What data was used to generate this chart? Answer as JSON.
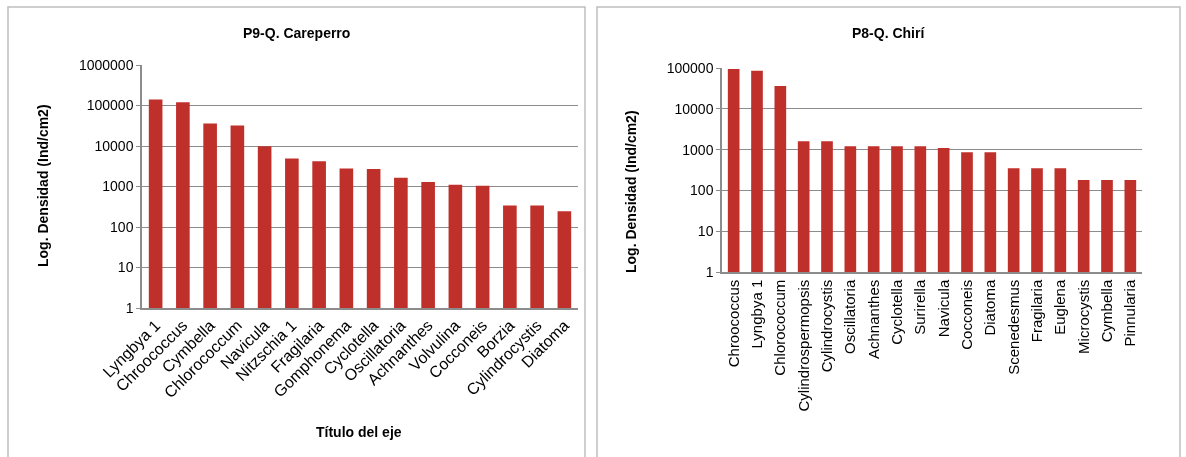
{
  "chart_data": [
    {
      "type": "bar",
      "title": "P9-Q. Careperro",
      "xlabel": "Título del eje",
      "ylabel": "Log. Densidad (Ind/cm2)",
      "categories": [
        "Lyngbya 1",
        "Chroococcus",
        "Cymbella",
        "Chlorococcum",
        "Navicula",
        "Nitzschia 1",
        "Fragilaria",
        "Gomphonema",
        "Cyclotella",
        "Oscillatoria",
        "Achnanthes",
        "Volvulina",
        "Cocconeis",
        "Borzia",
        "Cylindrocystis",
        "Diatoma"
      ],
      "values": [
        140000,
        120000,
        36000,
        32000,
        9800,
        4900,
        4200,
        2800,
        2700,
        1650,
        1300,
        1100,
        1050,
        340,
        340,
        245
      ],
      "color": "#c0302b",
      "log": true,
      "ylim": [
        1,
        1000000
      ],
      "yticks": [
        1,
        10,
        100,
        1000,
        10000,
        100000,
        1000000
      ],
      "grid": "y"
    },
    {
      "type": "bar",
      "title": "P8-Q. Chirí",
      "ylabel": "Log. Densidad (Ind/cm2)",
      "categories": [
        "Chroococcus",
        "Lyngbya 1",
        "Chlorococcum",
        "Cylindrospermopsis",
        "Cylindrocystis",
        "Oscillatoria",
        "Achnanthes",
        "Cyclotella",
        "Surirella",
        "Navicula",
        "Cocconeis",
        "Diatoma",
        "Scenedesmus",
        "Fragilaria",
        "Euglena",
        "Microcystis",
        "Cymbella",
        "Pinnularia"
      ],
      "values": [
        95000,
        86000,
        36000,
        1600,
        1600,
        1200,
        1200,
        1200,
        1200,
        1100,
        860,
        860,
        350,
        350,
        350,
        180,
        180,
        180
      ],
      "color": "#c0302b",
      "log": true,
      "ylim": [
        1,
        100000
      ],
      "yticks": [
        1,
        10,
        100,
        1000,
        10000,
        100000
      ],
      "grid": "y"
    }
  ]
}
